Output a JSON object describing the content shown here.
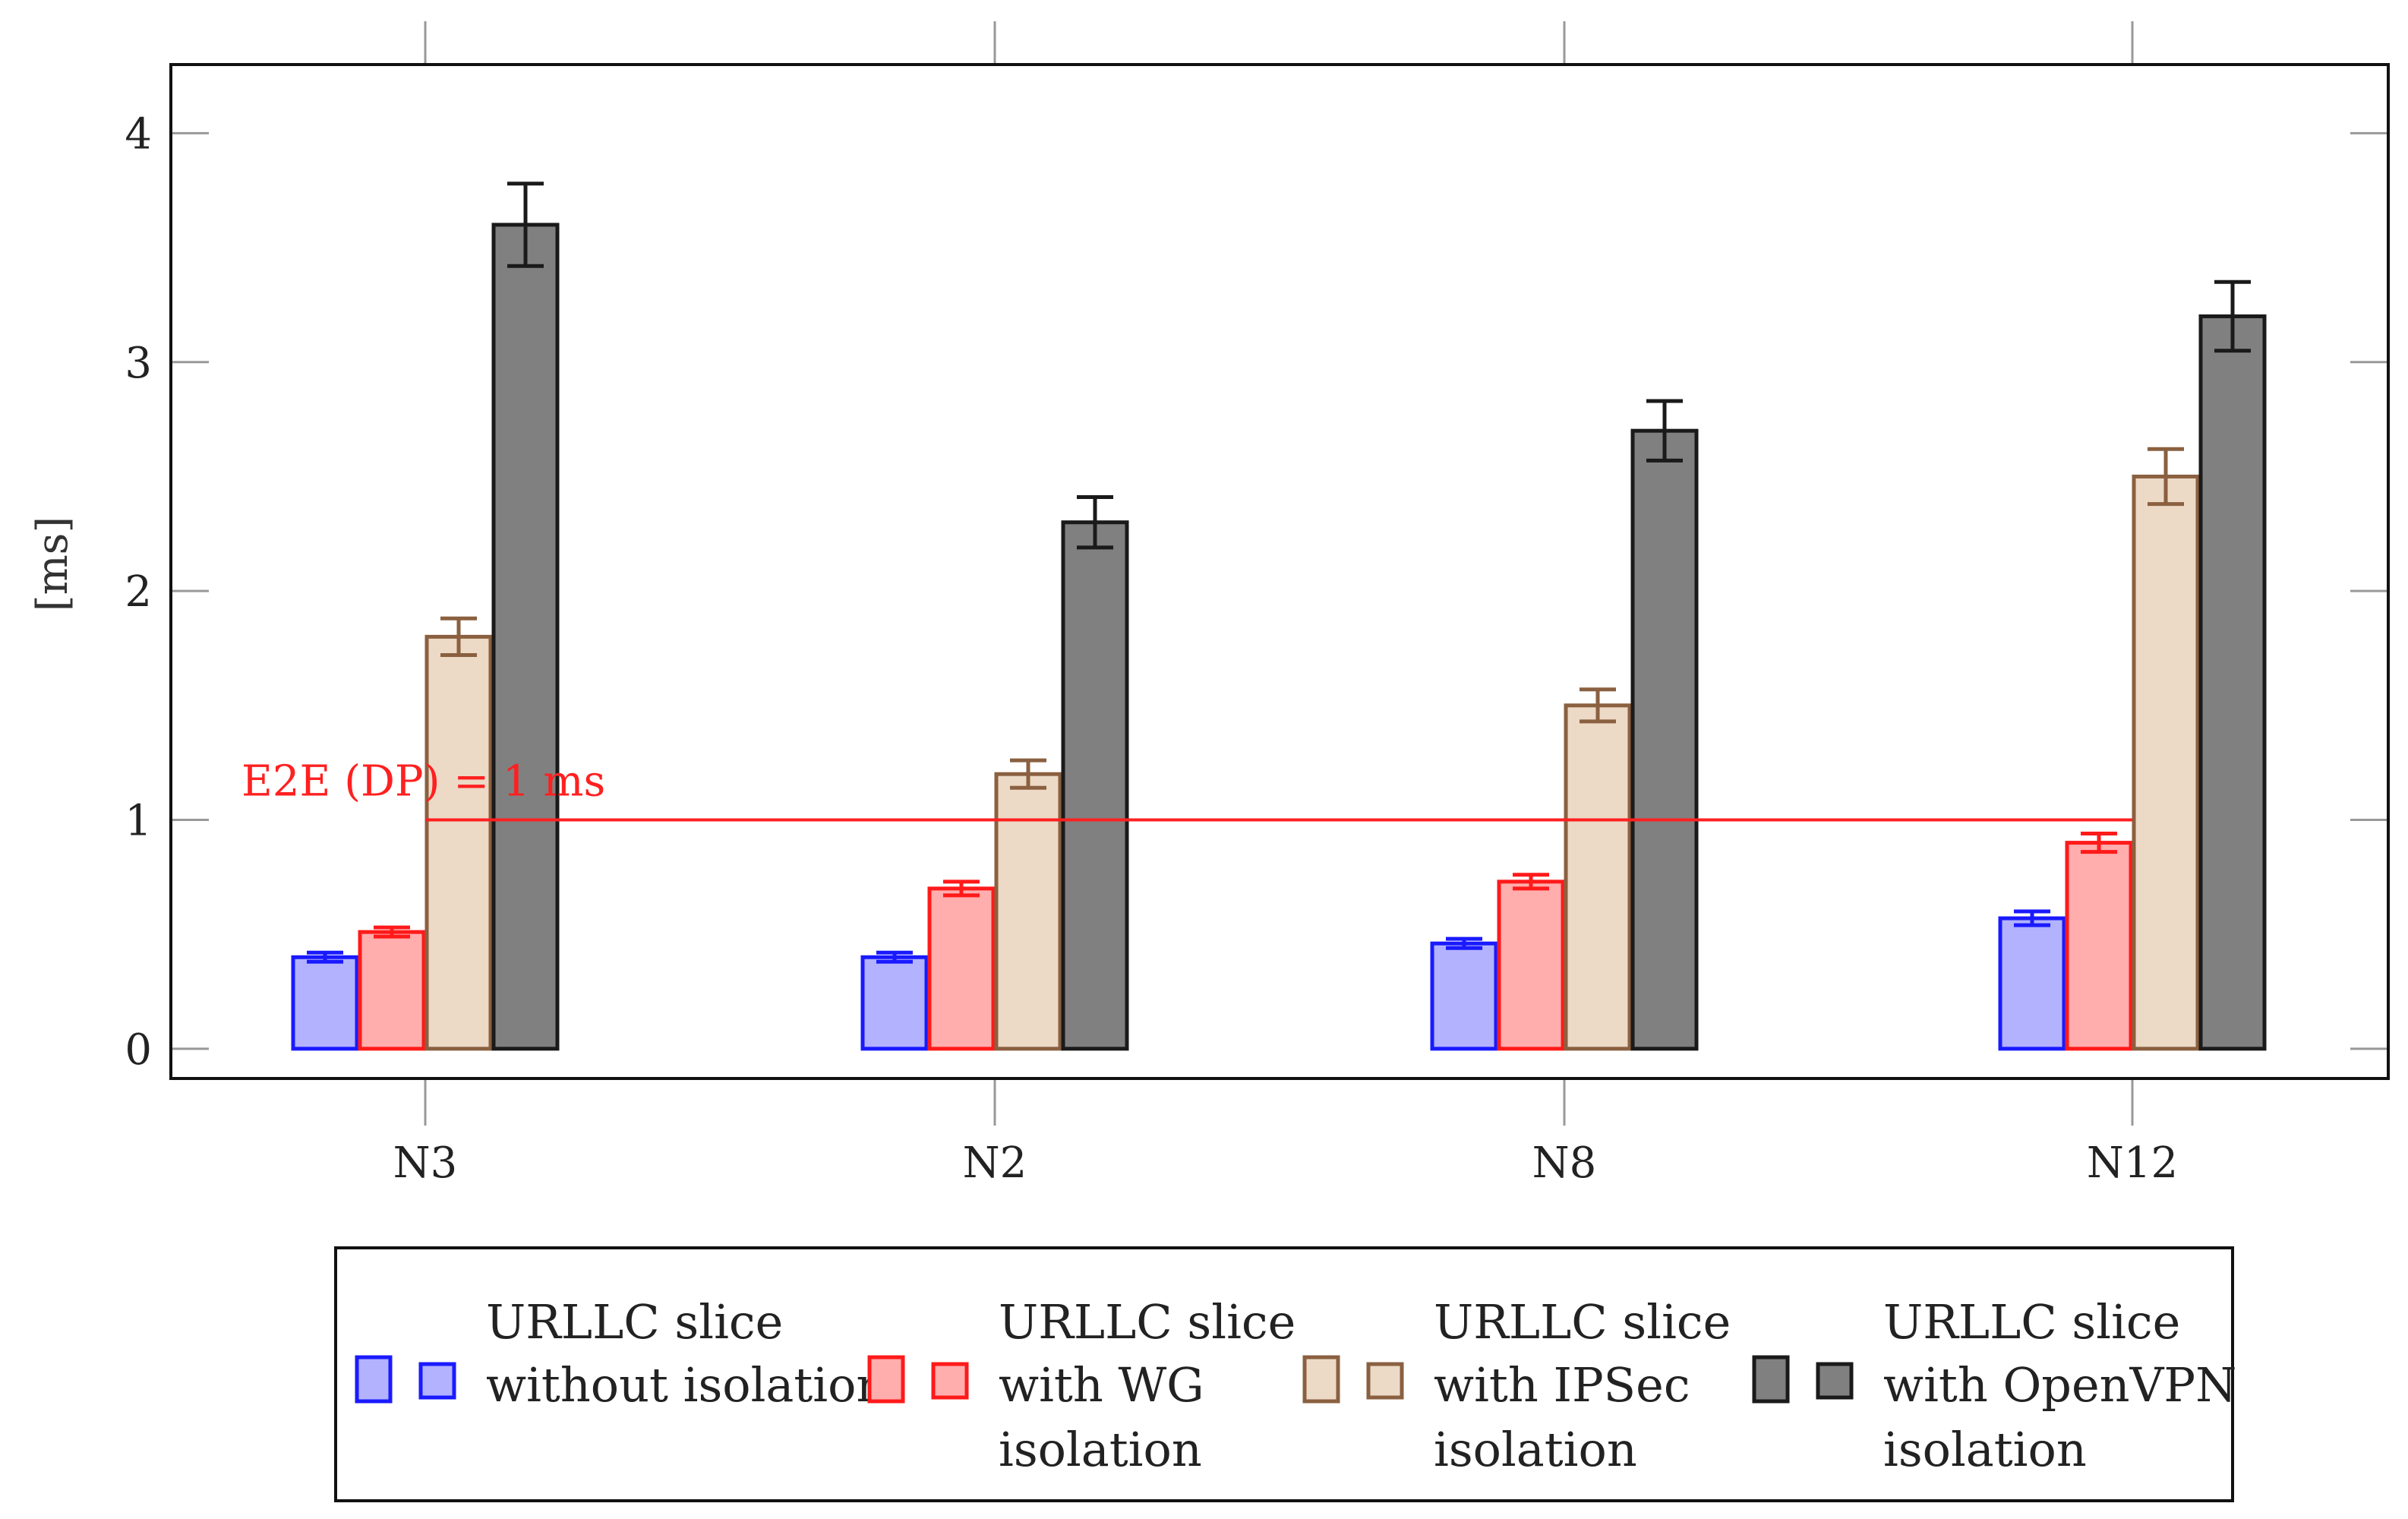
{
  "chart_data": {
    "type": "bar",
    "title": "",
    "xlabel": "",
    "ylabel": "[ms]",
    "ylim": [
      -0.13,
      4.3
    ],
    "yticks": [
      0,
      1,
      2,
      3,
      4
    ],
    "categories": [
      "N3",
      "N2",
      "N8",
      "N12"
    ],
    "legend_position": "bottom",
    "series": [
      {
        "name_lines": [
          "URLLC slice",
          "without isolation"
        ],
        "fill": "#b2b2ff",
        "stroke": "#1a1aff",
        "values": [
          0.4,
          0.4,
          0.46,
          0.57
        ],
        "errors": [
          0.02,
          0.02,
          0.02,
          0.03
        ]
      },
      {
        "name_lines": [
          "URLLC slice",
          "with WG",
          "isolation"
        ],
        "fill": "#ffadad",
        "stroke": "#ff1a1a",
        "values": [
          0.51,
          0.7,
          0.73,
          0.9
        ],
        "errors": [
          0.02,
          0.03,
          0.03,
          0.04
        ]
      },
      {
        "name_lines": [
          "URLLC slice",
          "with IPSec",
          "isolation"
        ],
        "fill": "#ecd9c6",
        "stroke": "#8a6040",
        "values": [
          1.8,
          1.2,
          1.5,
          2.5
        ],
        "errors": [
          0.08,
          0.06,
          0.07,
          0.12
        ]
      },
      {
        "name_lines": [
          "URLLC slice",
          "with OpenVPN",
          "isolation"
        ],
        "fill": "#808080",
        "stroke": "#1a1a1a",
        "values": [
          3.6,
          2.3,
          2.7,
          3.2
        ],
        "errors": [
          0.18,
          0.11,
          0.13,
          0.15
        ]
      }
    ],
    "threshold": {
      "value": 1,
      "label": "E2E (DP) = 1 ms",
      "color": "#ff2020",
      "from_category": "N3",
      "to_category": "N12"
    }
  }
}
